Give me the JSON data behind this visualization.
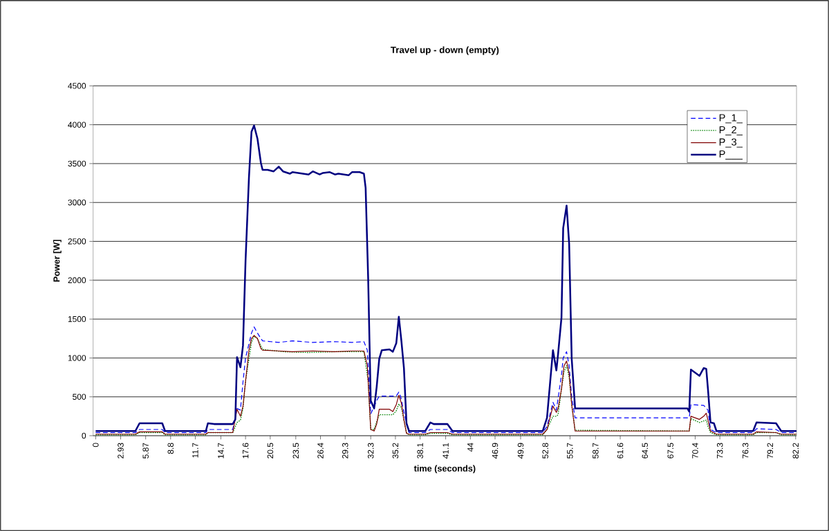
{
  "chart_data": {
    "type": "line",
    "title": "Travel up - down (empty)",
    "xlabel": "time (seconds)",
    "ylabel": "Power [W]",
    "xlim": [
      -0.3,
      82.3
    ],
    "xticks": [
      0,
      2.93,
      5.87,
      8.8,
      11.7,
      14.7,
      17.6,
      20.5,
      23.5,
      26.4,
      29.3,
      32.3,
      35.2,
      38.1,
      41.1,
      44,
      46.9,
      49.9,
      52.8,
      55.7,
      58.7,
      61.6,
      64.5,
      67.5,
      70.4,
      73.3,
      76.3,
      79.2,
      82.2
    ],
    "ylim": [
      0,
      4500
    ],
    "yticks": [
      0,
      500,
      1000,
      1500,
      2000,
      2500,
      3000,
      3500,
      4000,
      4500
    ],
    "grid": "y",
    "legend": "top right",
    "series": [
      {
        "name": "P_1_",
        "color": "#0000ff",
        "line_style": "dashed",
        "x": [
          0,
          4.66,
          5.15,
          7.82,
          8.15,
          12.94,
          13.18,
          16.1,
          16.6,
          17.0,
          17.3,
          17.6,
          18.3,
          18.6,
          19.0,
          19.4,
          19.6,
          21.5,
          23.1,
          25.5,
          28.1,
          30.1,
          31.5,
          31.9,
          32.3,
          33.0,
          33.3,
          35.3,
          35.6,
          35.8,
          36.5,
          36.8,
          38.7,
          39.3,
          41.3,
          41.9,
          52.5,
          53.0,
          53.7,
          54.1,
          54.7,
          54.9,
          55.3,
          55.6,
          55.9,
          56.3,
          69.7,
          69.9,
          71.4,
          71.9,
          72.2,
          72.9,
          77.2,
          77.6,
          79.9,
          80.5,
          82.3
        ],
        "values": [
          40,
          40,
          80,
          80,
          40,
          40,
          80,
          80,
          350,
          330,
          690,
          1000,
          1320,
          1400,
          1320,
          1250,
          1220,
          1200,
          1220,
          1200,
          1210,
          1200,
          1210,
          1100,
          280,
          450,
          510,
          510,
          560,
          510,
          150,
          40,
          40,
          80,
          80,
          40,
          40,
          120,
          430,
          330,
          780,
          1000,
          1080,
          900,
          500,
          230,
          230,
          400,
          390,
          330,
          80,
          40,
          40,
          90,
          80,
          40,
          40
        ]
      },
      {
        "name": "P_2_",
        "color": "#008000",
        "line_style": "dotted",
        "x": [
          0,
          4.66,
          5.15,
          7.82,
          8.15,
          12.94,
          13.18,
          16.1,
          16.6,
          17.0,
          17.3,
          17.6,
          18.3,
          18.6,
          19.0,
          19.6,
          22.0,
          25.0,
          28.1,
          31.5,
          32.0,
          32.3,
          32.7,
          33.0,
          33.3,
          34.9,
          35.3,
          35.6,
          35.9,
          36.2,
          36.5,
          36.8,
          38.7,
          39.3,
          41.3,
          41.9,
          52.5,
          53.0,
          53.7,
          54.1,
          54.3,
          54.7,
          55.0,
          55.3,
          55.6,
          55.9,
          56.3,
          69.7,
          69.9,
          70.9,
          71.4,
          71.7,
          71.9,
          72.2,
          72.9,
          77.2,
          77.6,
          79.9,
          80.5,
          82.3
        ],
        "values": [
          10,
          10,
          40,
          40,
          10,
          10,
          40,
          40,
          170,
          200,
          350,
          700,
          1200,
          1280,
          1250,
          1110,
          1080,
          1070,
          1080,
          1080,
          700,
          80,
          80,
          180,
          270,
          270,
          320,
          410,
          360,
          200,
          40,
          10,
          10,
          30,
          30,
          10,
          10,
          80,
          250,
          250,
          270,
          600,
          820,
          900,
          750,
          400,
          70,
          60,
          220,
          170,
          190,
          200,
          120,
          40,
          10,
          10,
          40,
          40,
          10,
          10
        ]
      },
      {
        "name": "P_3_",
        "color": "#800000",
        "line_style": "solid",
        "x": [
          0,
          4.66,
          5.15,
          7.82,
          8.15,
          12.94,
          13.18,
          16.1,
          16.6,
          17.0,
          17.3,
          17.6,
          18.0,
          18.3,
          18.6,
          19.0,
          19.4,
          19.6,
          21.5,
          23.1,
          25.5,
          28.1,
          30.1,
          31.5,
          31.9,
          32.3,
          32.7,
          33.0,
          33.3,
          34.5,
          34.9,
          35.3,
          35.6,
          35.9,
          36.2,
          36.5,
          36.8,
          38.7,
          39.3,
          41.3,
          41.9,
          52.5,
          53.0,
          53.7,
          54.1,
          54.3,
          54.7,
          55.0,
          55.3,
          55.6,
          55.9,
          56.3,
          69.7,
          69.9,
          70.9,
          71.4,
          71.7,
          71.9,
          72.2,
          72.9,
          77.2,
          77.6,
          79.9,
          80.5,
          82.3
        ],
        "values": [
          20,
          20,
          50,
          50,
          20,
          20,
          40,
          40,
          340,
          250,
          380,
          700,
          1100,
          1250,
          1290,
          1250,
          1120,
          1100,
          1090,
          1080,
          1090,
          1080,
          1090,
          1090,
          900,
          80,
          60,
          150,
          340,
          340,
          310,
          400,
          520,
          420,
          200,
          30,
          20,
          20,
          40,
          40,
          20,
          20,
          80,
          380,
          300,
          350,
          600,
          900,
          960,
          800,
          400,
          60,
          60,
          250,
          210,
          250,
          290,
          200,
          60,
          20,
          20,
          50,
          40,
          20,
          20
        ]
      },
      {
        "name": "P___",
        "color": "#000080",
        "line_style": "solid",
        "x": [
          0,
          4.66,
          5.15,
          7.82,
          8.15,
          12.94,
          13.18,
          13.9,
          16.1,
          16.4,
          16.6,
          17.0,
          17.3,
          17.6,
          18.0,
          18.3,
          18.6,
          19.0,
          19.4,
          19.6,
          20.2,
          20.9,
          21.5,
          22.0,
          22.8,
          23.1,
          25.0,
          25.5,
          26.3,
          26.7,
          27.5,
          28.1,
          28.5,
          29.7,
          30.1,
          31.0,
          31.5,
          31.7,
          32.0,
          32.3,
          32.7,
          33.0,
          33.3,
          33.6,
          34.5,
          34.9,
          35.3,
          35.6,
          35.9,
          36.2,
          36.5,
          36.8,
          38.7,
          39.3,
          39.7,
          41.3,
          41.9,
          52.5,
          53.0,
          53.7,
          54.1,
          54.3,
          54.7,
          54.9,
          55.3,
          55.6,
          55.9,
          56.3,
          69.5,
          69.7,
          69.9,
          70.9,
          71.4,
          71.7,
          71.9,
          72.2,
          72.6,
          72.9,
          77.2,
          77.6,
          79.9,
          80.5,
          82.3
        ],
        "values": [
          60,
          60,
          160,
          160,
          60,
          60,
          160,
          150,
          150,
          210,
          1010,
          880,
          1160,
          2250,
          3320,
          3910,
          3990,
          3820,
          3510,
          3420,
          3420,
          3400,
          3460,
          3400,
          3370,
          3390,
          3360,
          3400,
          3360,
          3380,
          3390,
          3360,
          3370,
          3350,
          3390,
          3390,
          3370,
          3190,
          2020,
          450,
          350,
          630,
          990,
          1100,
          1110,
          1080,
          1190,
          1530,
          1220,
          870,
          160,
          60,
          60,
          170,
          150,
          150,
          60,
          60,
          230,
          1100,
          840,
          1050,
          1520,
          2670,
          2960,
          2470,
          990,
          350,
          350,
          310,
          850,
          770,
          870,
          860,
          600,
          170,
          160,
          60,
          60,
          170,
          160,
          60,
          60
        ]
      }
    ]
  }
}
